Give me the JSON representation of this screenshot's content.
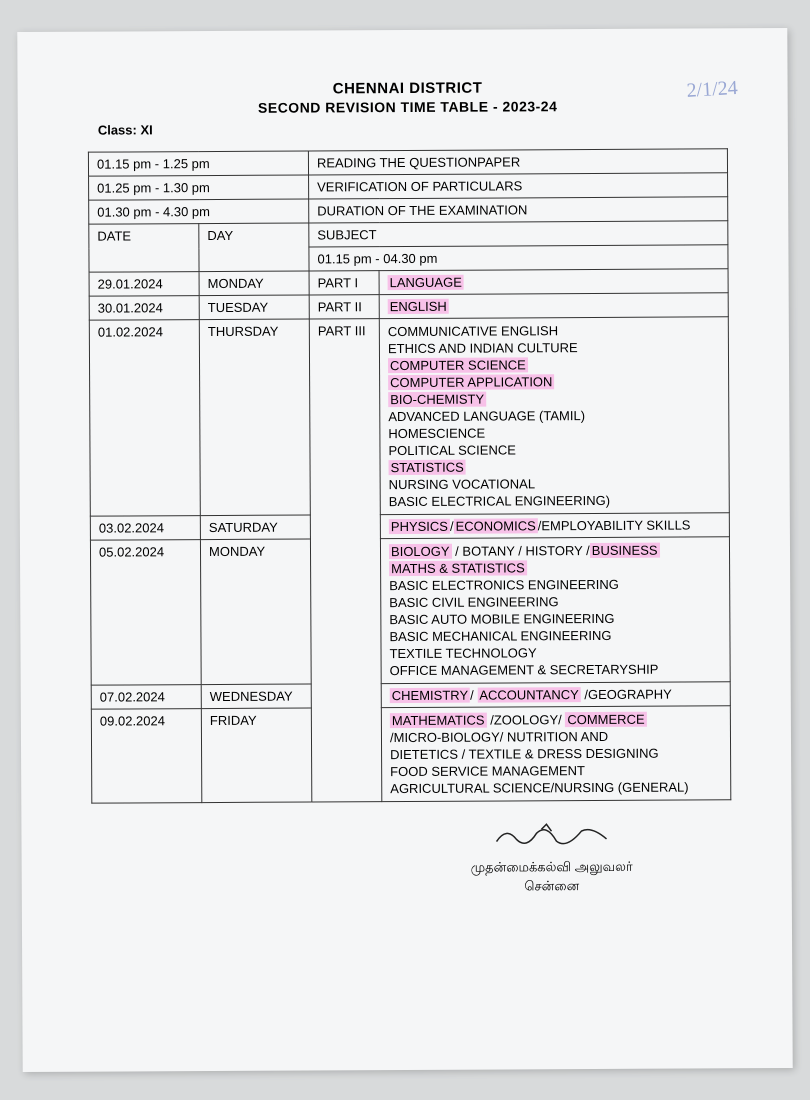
{
  "handwritten": "2/1/24",
  "header": {
    "title": "CHENNAI DISTRICT",
    "subtitle": "SECOND REVISION TIME TABLE - 2023-24"
  },
  "class_label": "Class: XI",
  "timing_rows": [
    {
      "time": "01.15 pm - 1.25 pm",
      "desc": "READING THE QUESTIONPAPER"
    },
    {
      "time": "01.25 pm - 1.30 pm",
      "desc": "VERIFICATION OF PARTICULARS"
    },
    {
      "time": "01.30 pm - 4.30 pm",
      "desc": "DURATION OF THE EXAMINATION"
    }
  ],
  "columns": {
    "date": "DATE",
    "day": "DAY",
    "subject": "SUBJECT",
    "session": "01.15  pm - 04.30 pm"
  },
  "rows": {
    "r1": {
      "date": "29.01.2024",
      "day": "MONDAY",
      "part": "PART I",
      "subjects": [
        {
          "text": "LANGUAGE",
          "hl": true
        }
      ]
    },
    "r2": {
      "date": "30.01.2024",
      "day": "TUESDAY",
      "part": "PART II",
      "subjects": [
        {
          "text": "ENGLISH",
          "hl": true
        }
      ]
    },
    "r3": {
      "date": "01.02.2024",
      "day": "THURSDAY",
      "part": "PART III",
      "subjects": [
        {
          "text": "COMMUNICATIVE ENGLISH",
          "hl": false
        },
        {
          "text": "ETHICS AND INDIAN CULTURE",
          "hl": false
        },
        {
          "text": "COMPUTER SCIENCE",
          "hl": true
        },
        {
          "text": "COMPUTER APPLICATION",
          "hl": true
        },
        {
          "text": "BIO-CHEMISTY",
          "hl": true
        },
        {
          "text": "ADVANCED  LANGUAGE (TAMIL)",
          "hl": false
        },
        {
          "text": "HOMESCIENCE",
          "hl": false
        },
        {
          "text": "POLITICAL SCIENCE",
          "hl": false
        },
        {
          "text": "STATISTICS",
          "hl": true
        },
        {
          "text": "NURSING VOCATIONAL",
          "hl": false
        },
        {
          "text": "BASIC ELECTRICAL ENGINEERING)",
          "hl": false
        }
      ]
    },
    "r4": {
      "date": "03.02.2024",
      "day": "SATURDAY",
      "segments": [
        {
          "text": "PHYSICS",
          "hl": true
        },
        {
          "text": "/",
          "hl": false
        },
        {
          "text": "ECONOMICS",
          "hl": true
        },
        {
          "text": "/EMPLOYABILITY SKILLS",
          "hl": false
        }
      ]
    },
    "r5": {
      "date": "05.02.2024",
      "day": "MONDAY",
      "lines": [
        [
          {
            "text": "BIOLOGY",
            "hl": true
          },
          {
            "text": " / BOTANY / HISTORY /",
            "hl": false
          },
          {
            "text": "BUSINESS",
            "hl": true
          }
        ],
        [
          {
            "text": "MATHS & STATISTICS",
            "hl": true
          }
        ],
        [
          {
            "text": "BASIC ELECTRONICS ENGINEERING",
            "hl": false
          }
        ],
        [
          {
            "text": "BASIC CIVIL ENGINEERING",
            "hl": false
          }
        ],
        [
          {
            "text": "BASIC AUTO MOBILE ENGINEERING",
            "hl": false
          }
        ],
        [
          {
            "text": "BASIC MECHANICAL ENGINEERING",
            "hl": false
          }
        ],
        [
          {
            "text": "TEXTILE TECHNOLOGY",
            "hl": false
          }
        ],
        [
          {
            "text": "OFFICE MANAGEMENT & SECRETARYSHIP",
            "hl": false
          }
        ]
      ]
    },
    "r6": {
      "date": "07.02.2024",
      "day": "WEDNESDAY",
      "segments": [
        {
          "text": "CHEMISTRY",
          "hl": true
        },
        {
          "text": "/ ",
          "hl": false
        },
        {
          "text": "ACCOUNTANCY",
          "hl": true
        },
        {
          "text": " /GEOGRAPHY",
          "hl": false
        }
      ]
    },
    "r7": {
      "date": "09.02.2024",
      "day": "FRIDAY",
      "lines": [
        [
          {
            "text": "MATHEMATICS",
            "hl": true
          },
          {
            "text": " /ZOOLOGY/ ",
            "hl": false
          },
          {
            "text": "COMMERCE",
            "hl": true
          }
        ],
        [
          {
            "text": "/MICRO-BIOLOGY/ NUTRITION AND",
            "hl": false
          }
        ],
        [
          {
            "text": "DIETETICS / TEXTILE & DRESS DESIGNING",
            "hl": false
          }
        ],
        [
          {
            "text": "FOOD SERVICE MANAGEMENT",
            "hl": false
          }
        ],
        [
          {
            "text": "AGRICULTURAL SCIENCE/NURSING (GENERAL)",
            "hl": false
          }
        ]
      ]
    }
  },
  "footer": {
    "line1": "முதன்மைக்கல்வி அலுவலர்",
    "line2": "சென்னை"
  },
  "colors": {
    "highlight": "#f7c1e8",
    "paper": "#f5f6f7",
    "bg": "#d8dadb",
    "border": "#333333"
  }
}
